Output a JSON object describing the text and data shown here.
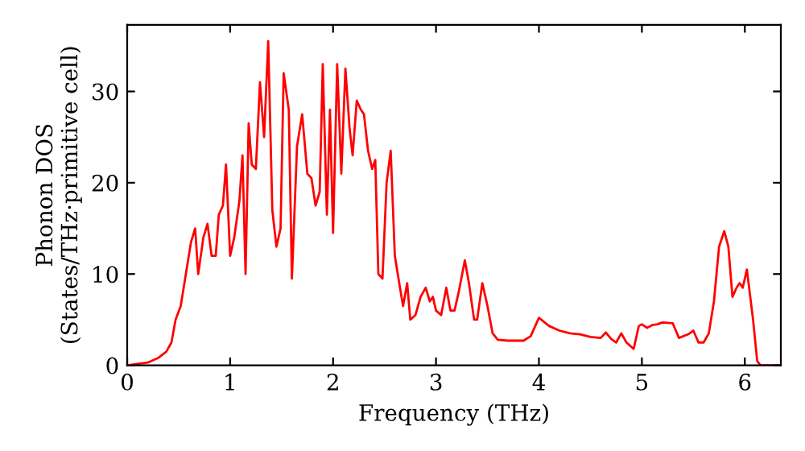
{
  "chart_data": {
    "type": "line",
    "xlabel": "Frequency (THz)",
    "ylabel": "Phonon DOS\n(States/THz·primitive cell)",
    "xlim": [
      0,
      6.35
    ],
    "ylim": [
      0,
      37.3
    ],
    "xticks": [
      0,
      1,
      2,
      3,
      4,
      5,
      6
    ],
    "yticks": [
      0,
      10,
      20,
      30
    ],
    "grid": false,
    "legend": false,
    "marker": "none",
    "line_style": "solid",
    "series": [
      {
        "color": "#ff0000",
        "x": [
          0,
          0.2,
          0.3,
          0.38,
          0.43,
          0.47,
          0.52,
          0.57,
          0.62,
          0.66,
          0.69,
          0.74,
          0.78,
          0.82,
          0.86,
          0.89,
          0.93,
          0.96,
          1.0,
          1.04,
          1.09,
          1.12,
          1.15,
          1.18,
          1.21,
          1.25,
          1.29,
          1.33,
          1.37,
          1.41,
          1.45,
          1.49,
          1.52,
          1.57,
          1.6,
          1.65,
          1.7,
          1.75,
          1.79,
          1.83,
          1.87,
          1.9,
          1.94,
          1.97,
          2.0,
          2.04,
          2.08,
          2.12,
          2.16,
          2.19,
          2.23,
          2.27,
          2.3,
          2.34,
          2.38,
          2.41,
          2.44,
          2.48,
          2.52,
          2.56,
          2.6,
          2.65,
          2.68,
          2.72,
          2.75,
          2.8,
          2.85,
          2.9,
          2.94,
          2.97,
          3.0,
          3.05,
          3.1,
          3.14,
          3.18,
          3.22,
          3.28,
          3.32,
          3.37,
          3.4,
          3.45,
          3.5,
          3.55,
          3.6,
          3.7,
          3.85,
          3.92,
          4.0,
          4.1,
          4.2,
          4.3,
          4.4,
          4.5,
          4.6,
          4.65,
          4.7,
          4.75,
          4.8,
          4.85,
          4.92,
          4.97,
          5.0,
          5.05,
          5.1,
          5.15,
          5.2,
          5.3,
          5.36,
          5.45,
          5.5,
          5.55,
          5.6,
          5.65,
          5.7,
          5.75,
          5.8,
          5.84,
          5.88,
          5.92,
          5.95,
          5.98,
          6.02,
          6.08,
          6.12,
          6.15,
          6.35
        ],
        "values": [
          0,
          0.3,
          0.8,
          1.5,
          2.5,
          5,
          6.5,
          10,
          13.5,
          15,
          10,
          14,
          15.5,
          12,
          12,
          16.5,
          17.5,
          22,
          12,
          14,
          18,
          23,
          10,
          26.5,
          22,
          21.5,
          31,
          25,
          35.5,
          17,
          13,
          15,
          32,
          28,
          9.5,
          24,
          27.5,
          21,
          20.5,
          17.5,
          19,
          33,
          16.5,
          28,
          14.5,
          33,
          21,
          32.5,
          26,
          23,
          29,
          28,
          27.5,
          23.5,
          21.5,
          22.5,
          10,
          9.5,
          20,
          23.5,
          12,
          8.5,
          6.5,
          9,
          5,
          5.5,
          7.5,
          8.5,
          7,
          7.5,
          6,
          5.5,
          8.5,
          6,
          6,
          8,
          11.5,
          9,
          5,
          5,
          9,
          6.5,
          3.5,
          2.8,
          2.7,
          2.7,
          3.2,
          5.2,
          4.3,
          3.8,
          3.5,
          3.4,
          3.1,
          3.0,
          3.6,
          2.9,
          2.5,
          3.5,
          2.5,
          1.8,
          4.3,
          4.5,
          4.1,
          4.4,
          4.5,
          4.7,
          4.6,
          3.0,
          3.4,
          3.8,
          2.5,
          2.5,
          3.5,
          7,
          13,
          14.7,
          13,
          7.5,
          8.5,
          9,
          8.5,
          10.5,
          5,
          0.5,
          0,
          0
        ]
      }
    ]
  }
}
